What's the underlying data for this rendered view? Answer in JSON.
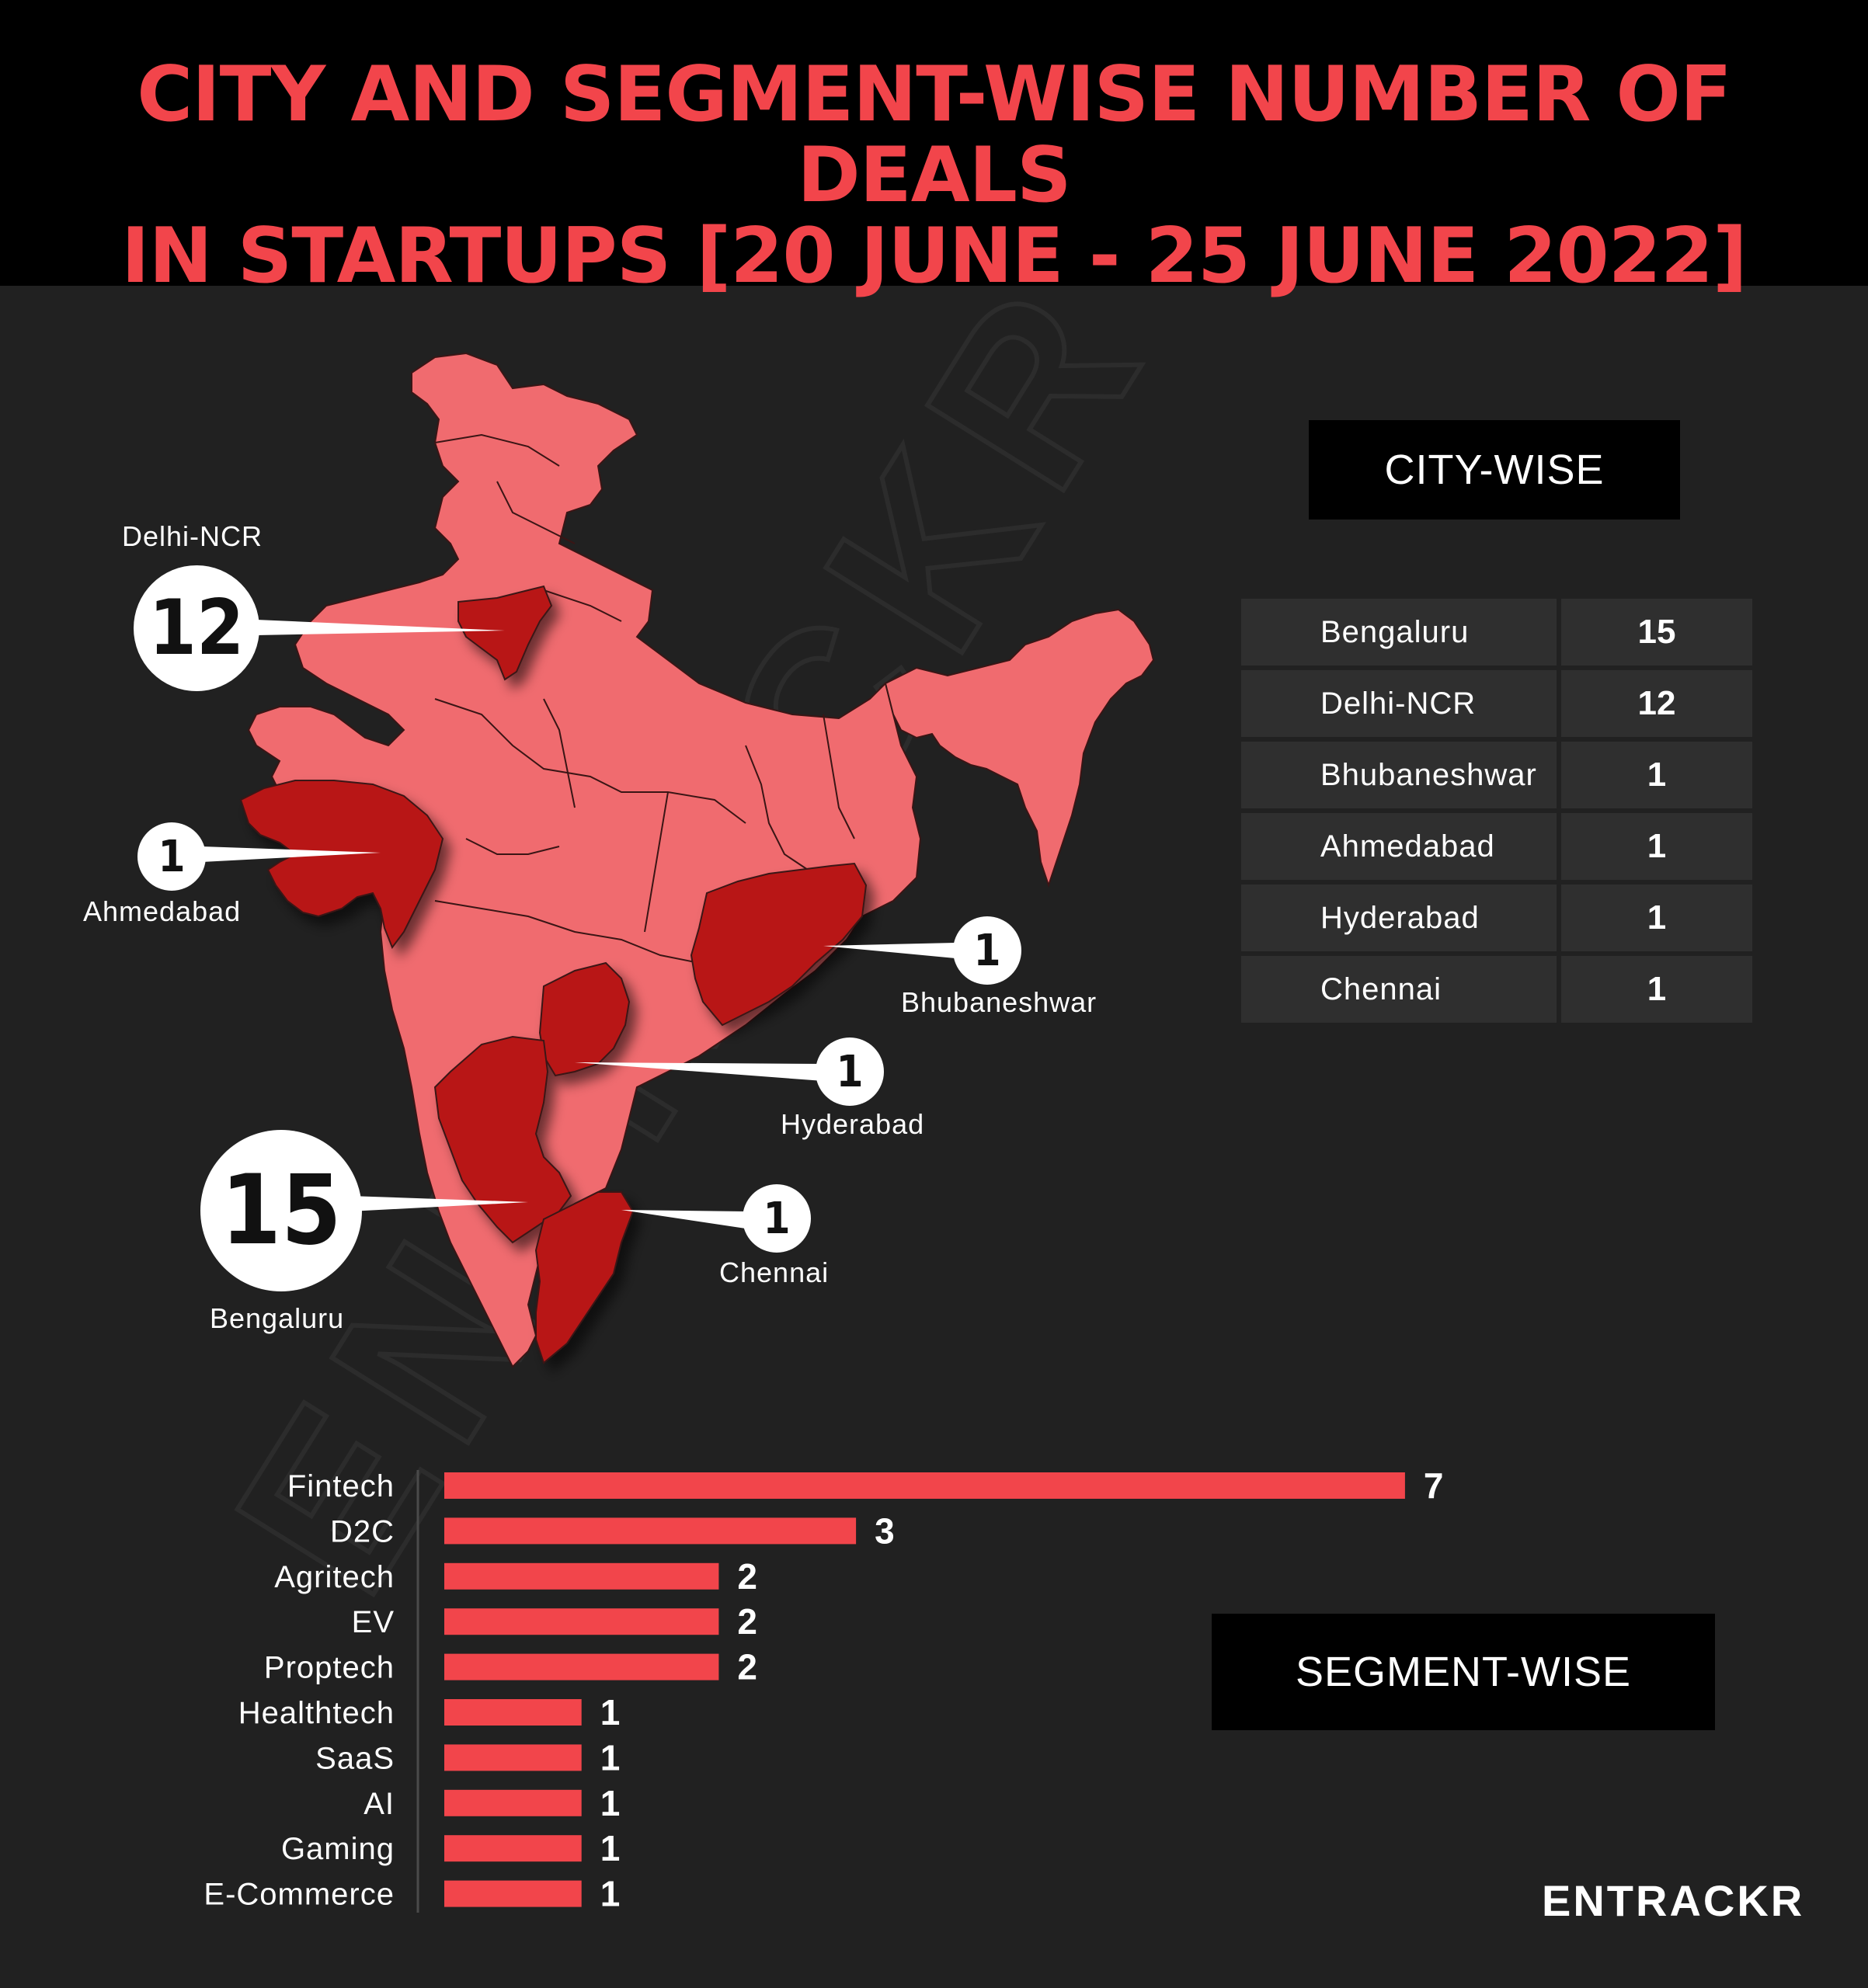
{
  "title_line1": "CITY AND SEGMENT-WISE NUMBER OF DEALS",
  "title_line2": "IN STARTUPS [20 JUNE - 25 JUNE 2022]",
  "watermark": "ENTRACKR",
  "city_box_title": "CITY-WISE",
  "segment_box_title": "SEGMENT-WISE",
  "logo": "ENTRACKR",
  "colors": {
    "accent": "#f2454b",
    "map_light": "#f06b6f",
    "map_dark": "#b81818",
    "background": "#212121"
  },
  "map_callouts": [
    {
      "city": "Delhi-NCR",
      "value": "12"
    },
    {
      "city": "Ahmedabad",
      "value": "1"
    },
    {
      "city": "Bhubaneshwar",
      "value": "1"
    },
    {
      "city": "Hyderabad",
      "value": "1"
    },
    {
      "city": "Bengaluru",
      "value": "15"
    },
    {
      "city": "Chennai",
      "value": "1"
    }
  ],
  "city_table": [
    {
      "city": "Bengaluru",
      "value": "15"
    },
    {
      "city": "Delhi-NCR",
      "value": "12"
    },
    {
      "city": "Bhubaneshwar",
      "value": "1"
    },
    {
      "city": "Ahmedabad",
      "value": "1"
    },
    {
      "city": "Hyderabad",
      "value": "1"
    },
    {
      "city": "Chennai",
      "value": "1"
    }
  ],
  "chart_data": {
    "type": "bar",
    "orientation": "horizontal",
    "title": "SEGMENT-WISE",
    "categories": [
      "Fintech",
      "D2C",
      "Agritech",
      "EV",
      "Proptech",
      "Healthtech",
      "SaaS",
      "AI",
      "Gaming",
      "E-Commerce"
    ],
    "values": [
      7,
      3,
      2,
      2,
      2,
      1,
      1,
      1,
      1,
      1
    ],
    "xlim": [
      0,
      7
    ],
    "grid": false,
    "data_labels": true,
    "bar_color": "#f2454b"
  }
}
